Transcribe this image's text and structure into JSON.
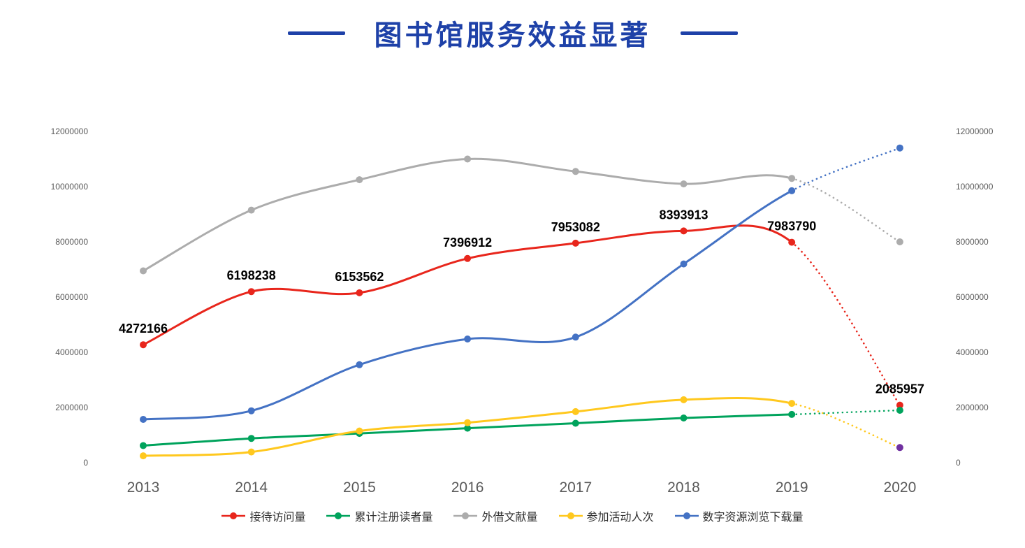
{
  "title": "图书馆服务效益显著",
  "colors": {
    "title": "#1E41A8",
    "axis_text": "#595959",
    "data_label": "#000000",
    "background": "#FFFFFF"
  },
  "chart_data": {
    "type": "line",
    "title": "图书馆服务效益显著",
    "x_labels": [
      "2013",
      "2014",
      "2015",
      "2016",
      "2017",
      "2018",
      "2019",
      "2020"
    ],
    "ylim": [
      0,
      12000000
    ],
    "yticks": [
      0,
      2000000,
      4000000,
      6000000,
      8000000,
      10000000,
      12000000
    ],
    "ytick_labels": [
      "0",
      "2000000",
      "4000000",
      "6000000",
      "8000000",
      "10000000",
      "12000000"
    ],
    "secondary_y_axis": true,
    "grid": false,
    "smooth": true,
    "legend_position": "bottom",
    "forecast_segment_start_index": 6,
    "series": [
      {
        "name": "接待访问量",
        "color": "#E8261C",
        "values": [
          4272166,
          6198238,
          6153562,
          7396912,
          7953082,
          8393913,
          7983790,
          2085957
        ],
        "point_labels": [
          "4272166",
          "6198238",
          "6153562",
          "7396912",
          "7953082",
          "8393913",
          "7983790",
          "2085957"
        ]
      },
      {
        "name": "累计注册读者量",
        "color": "#00A35C",
        "values": [
          620000,
          880000,
          1060000,
          1250000,
          1430000,
          1620000,
          1750000,
          1900000
        ]
      },
      {
        "name": "外借文献量",
        "color": "#ACACAC",
        "values": [
          6950000,
          9150000,
          10250000,
          11000000,
          10550000,
          10100000,
          10300000,
          8000000
        ]
      },
      {
        "name": "参加活动人次",
        "color": "#FFC81E",
        "values": [
          250000,
          390000,
          1150000,
          1450000,
          1850000,
          2280000,
          2150000,
          550000
        ],
        "last_marker_color": "#7030A0"
      },
      {
        "name": "数字资源浏览下载量",
        "color": "#4472C4",
        "values": [
          1570000,
          1880000,
          3550000,
          4480000,
          4550000,
          7200000,
          9850000,
          11400000
        ]
      }
    ]
  }
}
